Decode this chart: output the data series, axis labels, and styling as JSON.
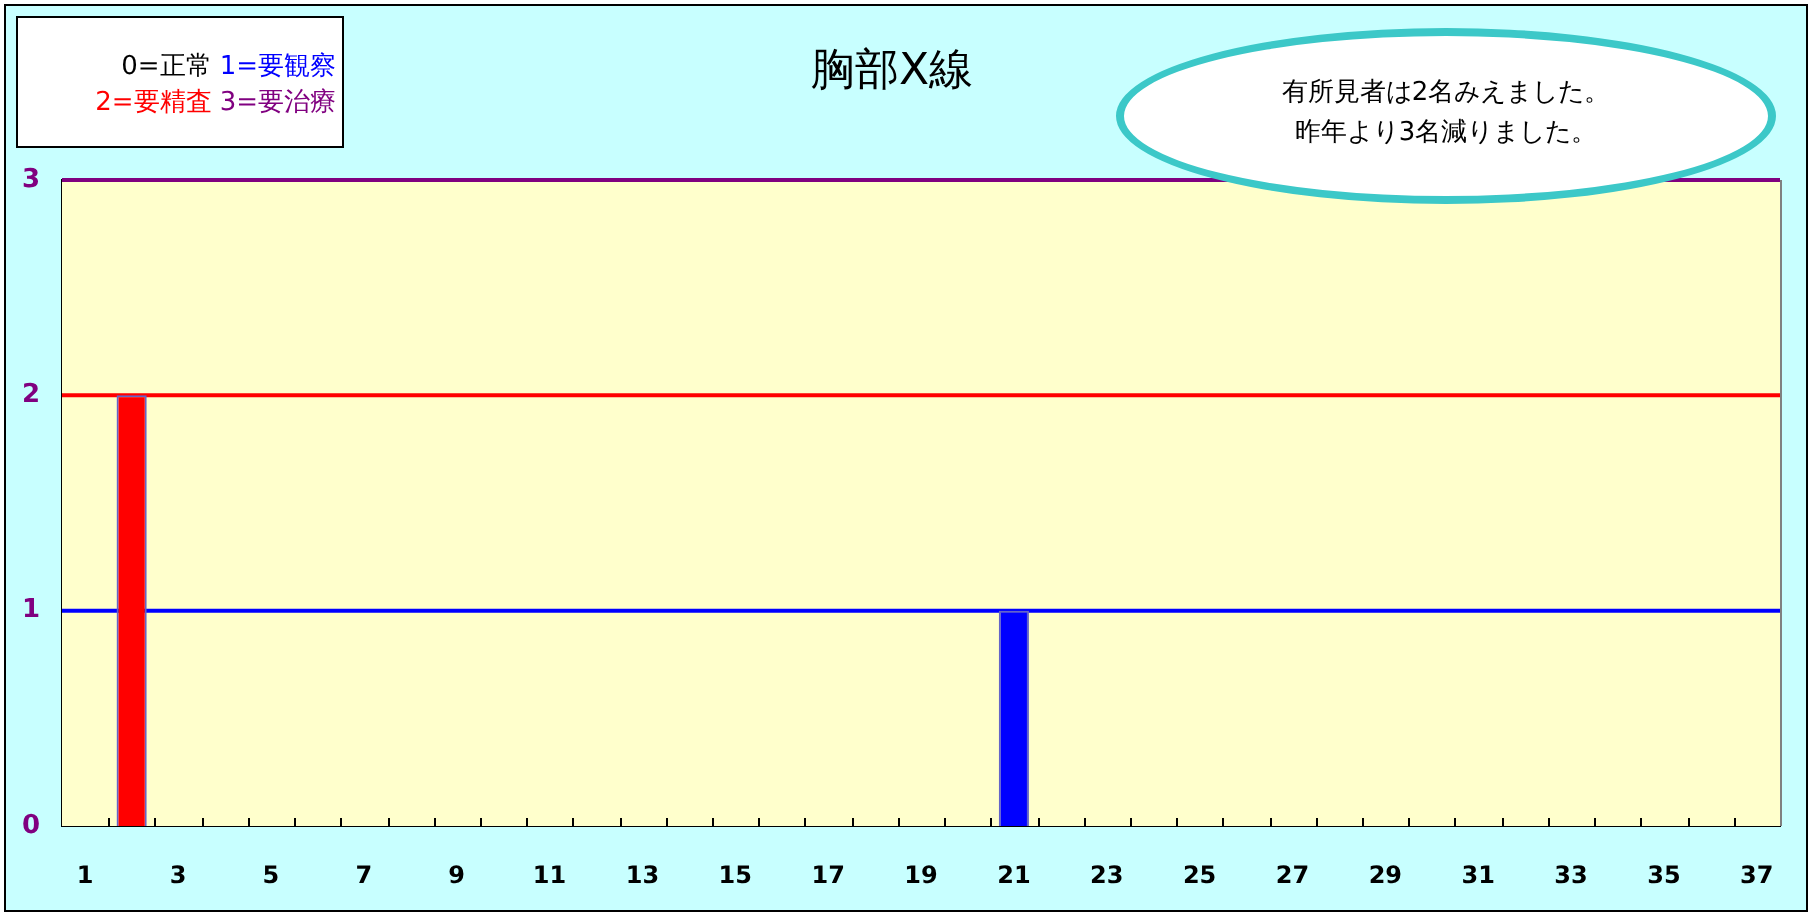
{
  "chart_data": {
    "type": "bar",
    "title": "胸部X線",
    "x": [
      1,
      2,
      3,
      4,
      5,
      6,
      7,
      8,
      9,
      10,
      11,
      12,
      13,
      14,
      15,
      16,
      17,
      18,
      19,
      20,
      21,
      22,
      23,
      24,
      25,
      26,
      27,
      28,
      29,
      30,
      31,
      32,
      33,
      34,
      35,
      36,
      37
    ],
    "series": [
      {
        "name": "0=正常",
        "color": "#000000",
        "values": [
          0,
          null,
          0,
          0,
          0,
          0,
          0,
          0,
          0,
          0,
          0,
          0,
          0,
          0,
          0,
          0,
          0,
          0,
          0,
          0,
          null,
          0,
          0,
          0,
          0,
          0,
          0,
          0,
          0,
          0,
          0,
          0,
          0,
          0,
          0,
          0,
          0
        ]
      },
      {
        "name": "1=要観察",
        "color": "#0000ff",
        "values": [
          null,
          null,
          null,
          null,
          null,
          null,
          null,
          null,
          null,
          null,
          null,
          null,
          null,
          null,
          null,
          null,
          null,
          null,
          null,
          null,
          1,
          null,
          null,
          null,
          null,
          null,
          null,
          null,
          null,
          null,
          null,
          null,
          null,
          null,
          null,
          null,
          null
        ]
      },
      {
        "name": "2=要精査",
        "color": "#ff0000",
        "values": [
          null,
          2,
          null,
          null,
          null,
          null,
          null,
          null,
          null,
          null,
          null,
          null,
          null,
          null,
          null,
          null,
          null,
          null,
          null,
          null,
          null,
          null,
          null,
          null,
          null,
          null,
          null,
          null,
          null,
          null,
          null,
          null,
          null,
          null,
          null,
          null,
          null
        ]
      },
      {
        "name": "3=要治療",
        "color": "#800080",
        "values": [
          null,
          null,
          null,
          null,
          null,
          null,
          null,
          null,
          null,
          null,
          null,
          null,
          null,
          null,
          null,
          null,
          null,
          null,
          null,
          null,
          null,
          null,
          null,
          null,
          null,
          null,
          null,
          null,
          null,
          null,
          null,
          null,
          null,
          null,
          null,
          null,
          null
        ]
      }
    ],
    "xlim": [
      0.5,
      37.5
    ],
    "xticks": [
      1,
      3,
      5,
      7,
      9,
      11,
      13,
      15,
      17,
      19,
      21,
      23,
      25,
      27,
      29,
      31,
      33,
      35,
      37
    ],
    "ylim": [
      0,
      3
    ],
    "yticks": [
      0,
      1,
      2,
      3
    ],
    "ref_lines": [
      {
        "axis": "y",
        "value": 1,
        "color": "#0000ff"
      },
      {
        "axis": "y",
        "value": 2,
        "color": "#ff0000"
      },
      {
        "axis": "y",
        "value": 3,
        "color": "#800080"
      }
    ],
    "legend": "top left",
    "annotations": [
      "有所見者は2名みえました。",
      "昨年より3名減りました。"
    ]
  }
}
